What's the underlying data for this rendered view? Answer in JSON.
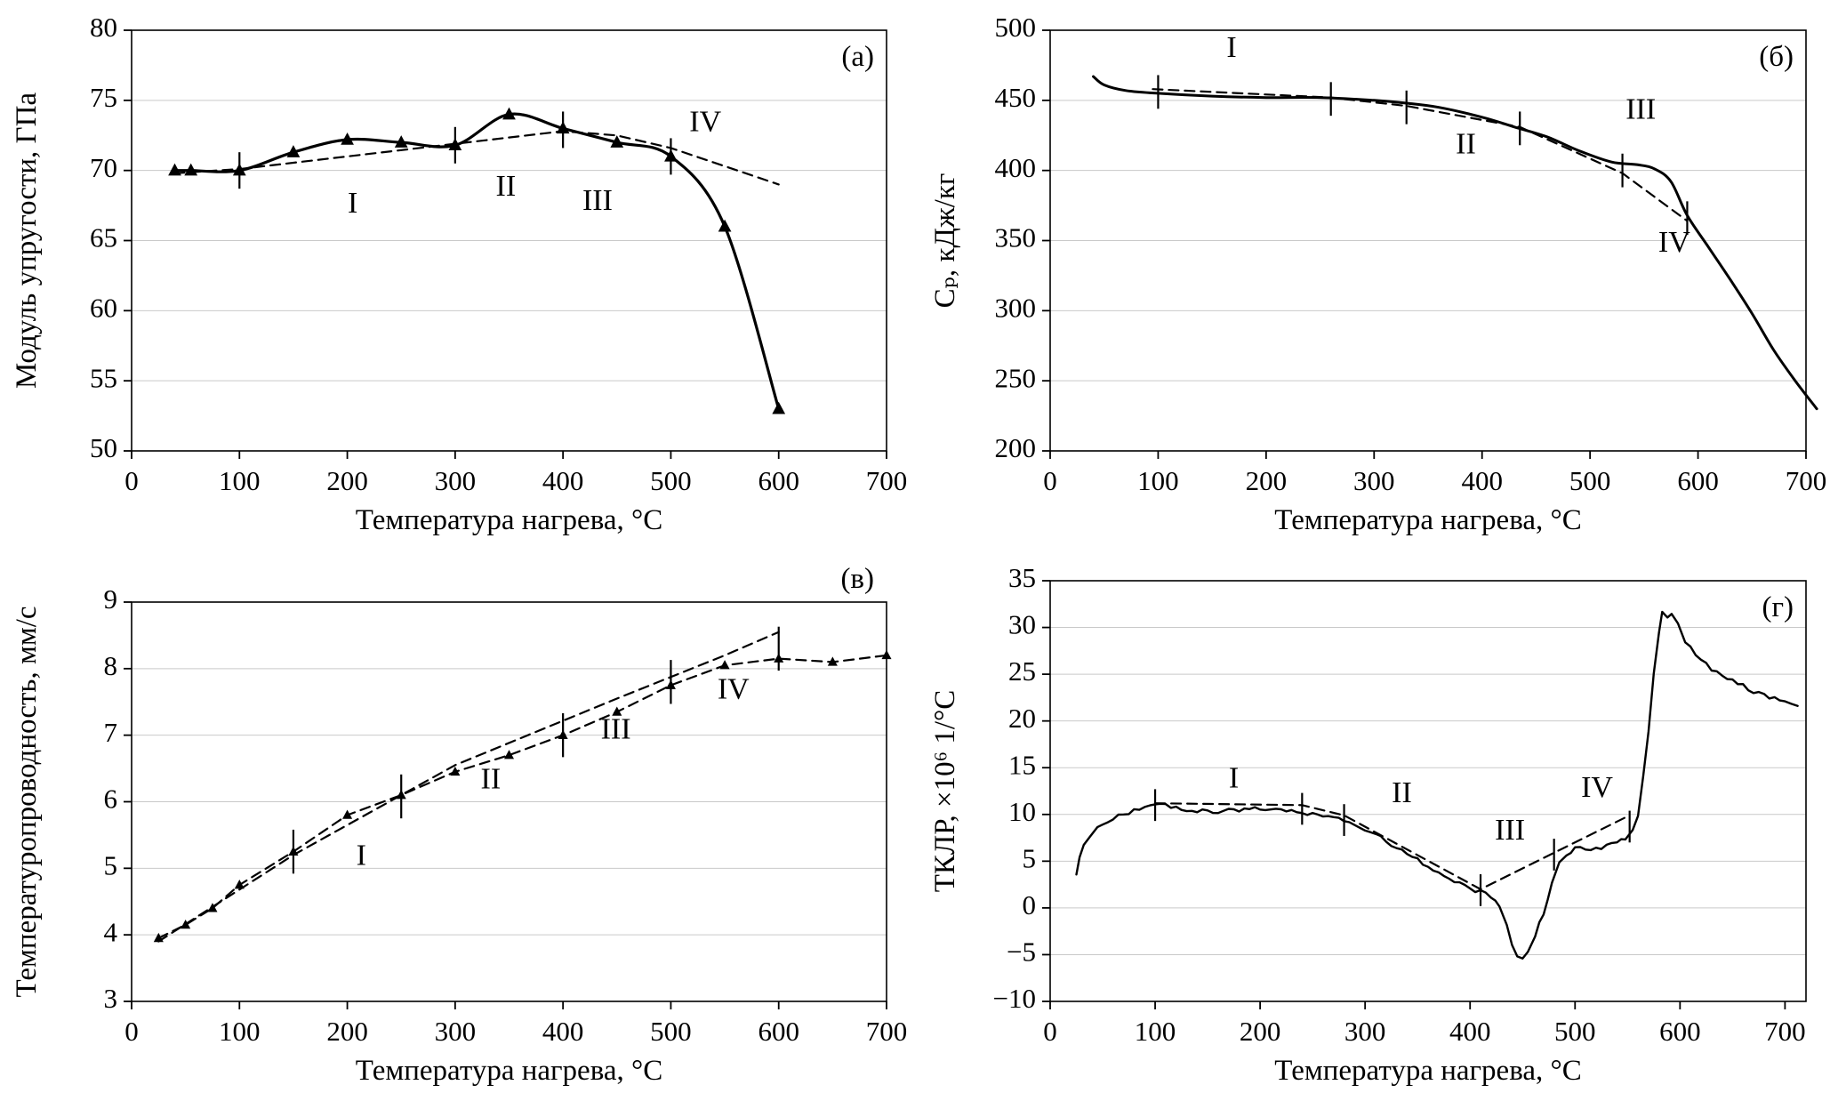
{
  "figure": {
    "background": "#ffffff",
    "axis_color": "#000000",
    "grid_color": "#c9c9c9",
    "xlabel": "Температура нагрева, °С"
  },
  "chart_data": [
    {
      "type": "line",
      "panel_label": "(а)",
      "panel_label_pos": "inside",
      "xlabel": "Температура нагрева, °С",
      "ylabel": "Модуль упругости, ГПа",
      "xlim": [
        0,
        700
      ],
      "xticks": [
        0,
        100,
        200,
        300,
        400,
        500,
        600,
        700
      ],
      "ylim": [
        50,
        80
      ],
      "yticks": [
        50,
        55,
        60,
        65,
        70,
        75,
        80
      ],
      "grid": "horizontal",
      "legend": "none",
      "series": [
        {
          "name": "experiment-solid",
          "style": "solid",
          "smooth": true,
          "width": 3.2,
          "marker": "triangle",
          "marker_size": 8,
          "x": [
            40,
            55,
            100,
            150,
            200,
            250,
            300,
            350,
            400,
            450,
            500,
            550,
            600
          ],
          "y": [
            70,
            70,
            70,
            71.3,
            72.2,
            72,
            71.8,
            74,
            73,
            72,
            71,
            66,
            53
          ]
        },
        {
          "name": "approximation-dashed",
          "style": "dashed",
          "width": 2.2,
          "x": [
            40,
            100,
            200,
            300,
            400,
            450,
            500,
            550,
            600
          ],
          "y": [
            69.8,
            70.1,
            71.0,
            71.9,
            72.8,
            72.5,
            71.6,
            70.3,
            69.0
          ]
        }
      ],
      "error_bars": [
        {
          "x": 100,
          "y": 70.0,
          "h": 1.3
        },
        {
          "x": 300,
          "y": 71.8,
          "h": 1.3
        },
        {
          "x": 400,
          "y": 72.9,
          "h": 1.3
        },
        {
          "x": 500,
          "y": 71.0,
          "h": 1.3
        }
      ],
      "annotations": [
        {
          "text": "I",
          "x": 205,
          "y": 67.0
        },
        {
          "text": "II",
          "x": 347,
          "y": 68.2
        },
        {
          "text": "III",
          "x": 432,
          "y": 67.2
        },
        {
          "text": "IV",
          "x": 532,
          "y": 72.8
        }
      ]
    },
    {
      "type": "line",
      "panel_label": "(б)",
      "panel_label_pos": "inside",
      "xlabel": "Температура нагрева, °С",
      "ylabel": "Cₚ, кДж/кг",
      "xlim": [
        0,
        700
      ],
      "xticks": [
        0,
        100,
        200,
        300,
        400,
        500,
        600,
        700
      ],
      "ylim": [
        200,
        500
      ],
      "yticks": [
        200,
        250,
        300,
        350,
        400,
        450,
        500
      ],
      "grid": "horizontal",
      "legend": "none",
      "series": [
        {
          "name": "experiment-solid",
          "style": "solid",
          "smooth": true,
          "width": 3.0,
          "x": [
            40,
            50,
            70,
            100,
            150,
            200,
            250,
            300,
            330,
            360,
            400,
            430,
            460,
            490,
            520,
            545,
            560,
            575,
            590,
            610,
            630,
            650,
            670,
            690,
            710
          ],
          "y": [
            467,
            461,
            457,
            455,
            453,
            452,
            452,
            450,
            448,
            445,
            438,
            431,
            424,
            414,
            406,
            404,
            401,
            392,
            368,
            345,
            322,
            298,
            272,
            250,
            230
          ]
        },
        {
          "name": "approximation-dashed",
          "style": "dashed",
          "width": 2.2,
          "x": [
            95,
            260,
            330,
            435,
            530,
            590
          ],
          "y": [
            458,
            452,
            446,
            431,
            398,
            364
          ]
        }
      ],
      "error_bars": [
        {
          "x": 100,
          "y": 456,
          "h": 12
        },
        {
          "x": 260,
          "y": 451,
          "h": 12
        },
        {
          "x": 330,
          "y": 445,
          "h": 12
        },
        {
          "x": 435,
          "y": 430,
          "h": 12
        },
        {
          "x": 530,
          "y": 400,
          "h": 12
        },
        {
          "x": 590,
          "y": 366,
          "h": 12
        }
      ],
      "annotations": [
        {
          "text": "I",
          "x": 168,
          "y": 481
        },
        {
          "text": "II",
          "x": 385,
          "y": 412
        },
        {
          "text": "III",
          "x": 547,
          "y": 437
        },
        {
          "text": "IV",
          "x": 578,
          "y": 342
        }
      ]
    },
    {
      "type": "line",
      "panel_label": "(в)",
      "panel_label_pos": "outside",
      "xlabel": "Температура нагрева, °С",
      "ylabel": "Температуропроводность, мм/с",
      "xlim": [
        0,
        700
      ],
      "xticks": [
        0,
        100,
        200,
        300,
        400,
        500,
        600,
        700
      ],
      "ylim": [
        3,
        9
      ],
      "yticks": [
        3,
        4,
        5,
        6,
        7,
        8,
        9
      ],
      "grid": "horizontal",
      "legend": "none",
      "series": [
        {
          "name": "experiment-dashed-markers",
          "style": "dashed",
          "width": 2.2,
          "marker": "triangle",
          "marker_size": 6,
          "x": [
            25,
            50,
            75,
            100,
            150,
            200,
            250,
            300,
            350,
            400,
            450,
            500,
            550,
            600,
            650,
            700
          ],
          "y": [
            3.95,
            4.15,
            4.4,
            4.75,
            5.25,
            5.8,
            6.1,
            6.45,
            6.7,
            7.0,
            7.35,
            7.75,
            8.05,
            8.15,
            8.1,
            8.2
          ]
        },
        {
          "name": "trend-dashed",
          "style": "dashed",
          "width": 2.2,
          "x": [
            25,
            150,
            300,
            450,
            550,
            600
          ],
          "y": [
            3.9,
            5.2,
            6.55,
            7.55,
            8.2,
            8.55
          ]
        }
      ],
      "error_bars": [
        {
          "x": 150,
          "y": 5.25,
          "h": 0.33
        },
        {
          "x": 250,
          "y": 6.08,
          "h": 0.33
        },
        {
          "x": 400,
          "y": 7.0,
          "h": 0.33
        },
        {
          "x": 500,
          "y": 7.8,
          "h": 0.33
        },
        {
          "x": 600,
          "y": 8.3,
          "h": 0.33
        }
      ],
      "annotations": [
        {
          "text": "I",
          "x": 213,
          "y": 5.05
        },
        {
          "text": "II",
          "x": 333,
          "y": 6.2
        },
        {
          "text": "III",
          "x": 449,
          "y": 6.95
        },
        {
          "text": "IV",
          "x": 558,
          "y": 7.55
        }
      ]
    },
    {
      "type": "line",
      "panel_label": "(г)",
      "panel_label_pos": "inside",
      "xlabel": "Температура нагрева, °С",
      "ylabel": "ТКЛР, ×10⁶ 1/°С",
      "xlim": [
        0,
        720
      ],
      "xticks": [
        0,
        100,
        200,
        300,
        400,
        500,
        600,
        700
      ],
      "ylim": [
        -10,
        35
      ],
      "yticks": [
        -10,
        -5,
        0,
        5,
        10,
        15,
        20,
        25,
        30,
        35
      ],
      "grid": "horizontal",
      "legend": "none",
      "series": [
        {
          "name": "experiment-noisy-solid",
          "style": "solid",
          "width": 2.4,
          "noise": 0.22,
          "noise_step": 5,
          "x": [
            25,
            28,
            32,
            38,
            45,
            55,
            65,
            75,
            85,
            100,
            110,
            120,
            135,
            150,
            165,
            180,
            200,
            215,
            230,
            240,
            255,
            270,
            280,
            295,
            310,
            325,
            340,
            355,
            370,
            385,
            400,
            410,
            420,
            428,
            435,
            440,
            445,
            450,
            455,
            462,
            470,
            478,
            485,
            492,
            500,
            510,
            520,
            530,
            540,
            548,
            555,
            560,
            565,
            570,
            575,
            580,
            583,
            588,
            592,
            598,
            605,
            615,
            625,
            640,
            655,
            670,
            685,
            700,
            712
          ],
          "y": [
            3.8,
            5.5,
            6.8,
            7.8,
            8.6,
            9.3,
            9.8,
            10.2,
            10.5,
            11.0,
            11.0,
            10.7,
            10.4,
            10.3,
            10.4,
            10.5,
            10.6,
            10.5,
            10.4,
            10.2,
            9.9,
            9.6,
            9.3,
            8.6,
            7.8,
            6.8,
            5.8,
            4.8,
            3.8,
            2.8,
            2.0,
            1.7,
            1.2,
            0.2,
            -1.8,
            -3.8,
            -5.2,
            -5.5,
            -4.8,
            -3.0,
            -0.5,
            2.5,
            4.8,
            5.8,
            6.3,
            6.4,
            6.4,
            6.6,
            7.0,
            7.4,
            8.2,
            10.0,
            14.0,
            19.0,
            25.0,
            29.5,
            31.5,
            31.0,
            31.5,
            30.5,
            28.5,
            27.0,
            26.0,
            24.8,
            24.0,
            23.2,
            22.5,
            22.0,
            21.6
          ]
        },
        {
          "name": "approximation-dashed",
          "style": "dashed",
          "width": 2.2,
          "x": [
            100,
            240,
            280,
            410,
            480,
            552
          ],
          "y": [
            11.2,
            11.0,
            9.9,
            2.0,
            5.9,
            9.9
          ]
        }
      ],
      "error_bars": [
        {
          "x": 100,
          "y": 11.0,
          "h": 1.7
        },
        {
          "x": 240,
          "y": 10.6,
          "h": 1.7
        },
        {
          "x": 280,
          "y": 9.4,
          "h": 1.7
        },
        {
          "x": 410,
          "y": 1.9,
          "h": 1.7
        },
        {
          "x": 480,
          "y": 5.7,
          "h": 1.7
        },
        {
          "x": 552,
          "y": 8.7,
          "h": 1.7
        }
      ],
      "annotations": [
        {
          "text": "I",
          "x": 175,
          "y": 12.9
        },
        {
          "text": "II",
          "x": 335,
          "y": 11.3
        },
        {
          "text": "III",
          "x": 438,
          "y": 7.3
        },
        {
          "text": "IV",
          "x": 521,
          "y": 11.9
        }
      ]
    }
  ]
}
